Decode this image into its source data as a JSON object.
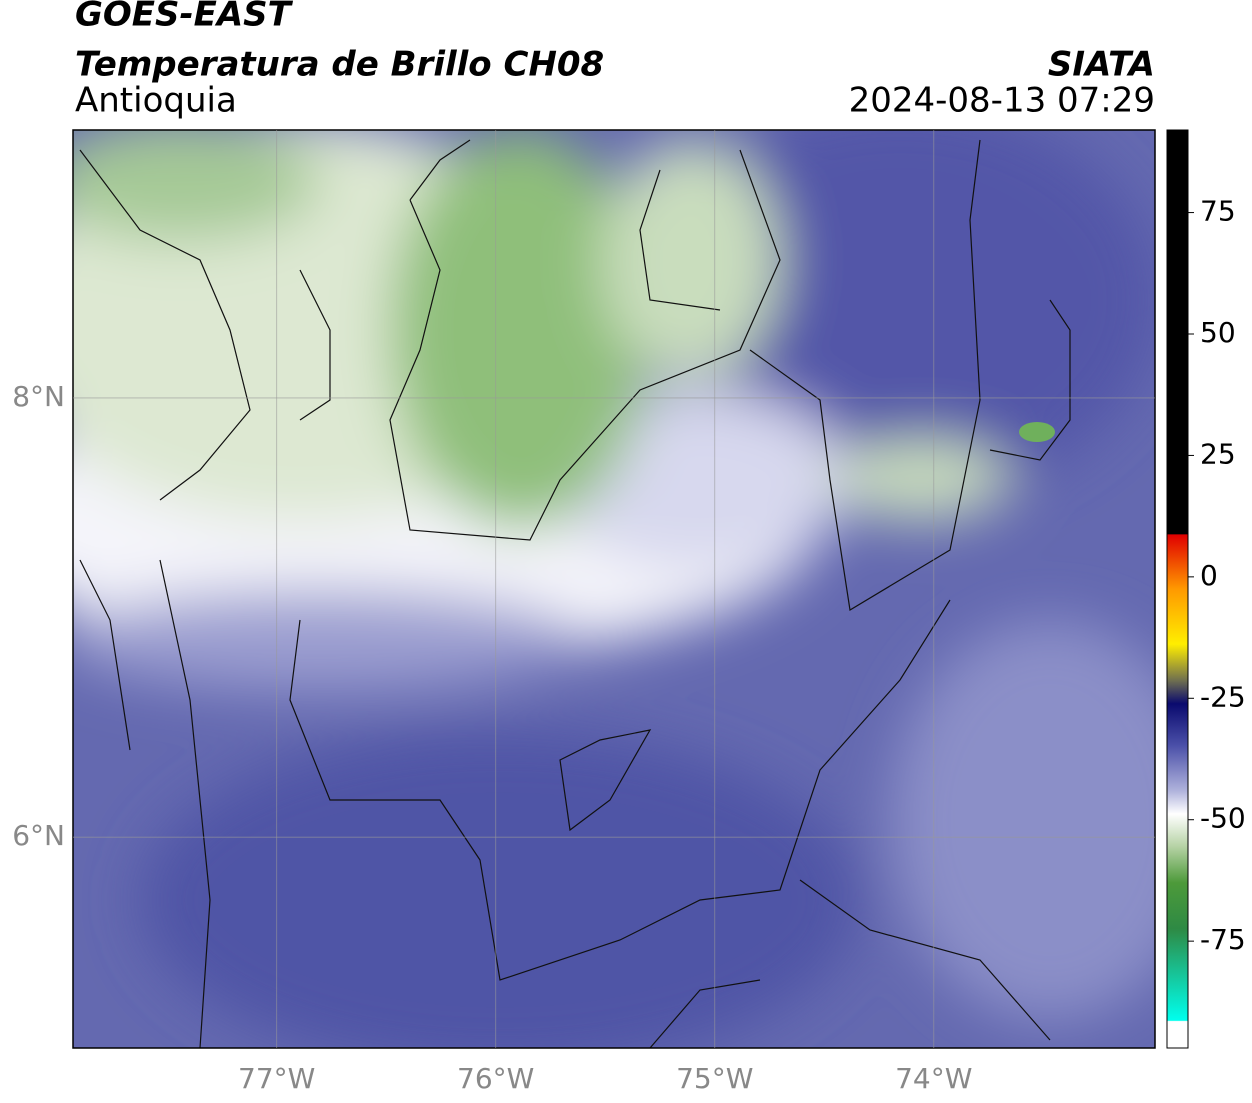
{
  "header": {
    "title": "GOES-EAST",
    "subtitle": "Temperatura de Brillo CH08",
    "region": "Antioquia",
    "source": "SIATA",
    "datetime": "2024-08-13 07:29"
  },
  "map": {
    "xlim": [
      -77.93,
      -72.99
    ],
    "ylim": [
      5.04,
      9.22
    ],
    "xticks": [
      {
        "value": -77,
        "label": "77°W"
      },
      {
        "value": -76,
        "label": "76°W"
      },
      {
        "value": -75,
        "label": "75°W"
      },
      {
        "value": -74,
        "label": "74°W"
      }
    ],
    "yticks": [
      {
        "value": 8,
        "label": "8°N"
      },
      {
        "value": 6,
        "label": "6°N"
      }
    ],
    "grid": true
  },
  "colorbar": {
    "lim": [
      -97,
      92
    ],
    "ticks": [
      75,
      50,
      25,
      0,
      -25,
      -50,
      -75
    ]
  }
}
